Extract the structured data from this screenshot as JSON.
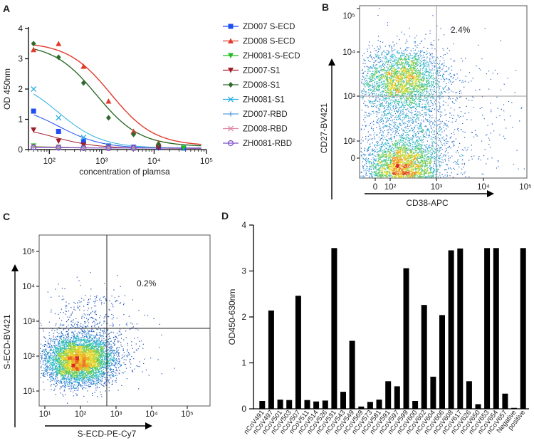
{
  "chart_data": [
    {
      "panel": "A",
      "type": "line",
      "xlabel": "concentration of plamsa",
      "ylabel": "OD 450nm",
      "xscale": "log",
      "xlim": [
        40,
        100000
      ],
      "ylim": [
        0,
        4
      ],
      "x_ticks": [
        "10²",
        "10³",
        "10⁴",
        "10⁵"
      ],
      "y_ticks": [
        "0",
        "1",
        "2",
        "3",
        "4"
      ],
      "series": [
        {
          "name": "ZD007 S-ECD",
          "color": "#1f4ff0",
          "marker": "square",
          "x": [
            50,
            150,
            450,
            1350,
            4050,
            12150,
            36450
          ],
          "y": [
            1.27,
            0.6,
            0.28,
            0.12,
            0.08,
            0.06,
            0.05
          ],
          "fit": [
            1.5,
            0.04,
            150
          ]
        },
        {
          "name": "ZD008 S-ECD",
          "color": "#e23b2e",
          "marker": "triangle-up",
          "x": [
            50,
            150,
            450,
            1350,
            4050,
            12150
          ],
          "y": [
            3.3,
            3.5,
            2.75,
            1.6,
            0.6,
            0.22
          ],
          "fit": [
            3.55,
            0.12,
            1500
          ]
        },
        {
          "name": "ZH0081-S-ECD",
          "color": "#22bb22",
          "marker": "triangle-down",
          "x": [
            50,
            150,
            450,
            1350,
            4050,
            12150,
            36450
          ],
          "y": [
            0.12,
            0.08,
            0.06,
            0.06,
            0.05,
            0.05,
            0.05
          ],
          "fit": [
            0.12,
            0.05,
            120
          ]
        },
        {
          "name": "ZD007-S1",
          "color": "#a01c28",
          "marker": "triangle-down",
          "x": [
            50,
            150,
            450,
            1350,
            4050,
            12150
          ],
          "y": [
            0.65,
            0.28,
            0.15,
            0.08,
            0.06,
            0.05
          ],
          "fit": [
            0.8,
            0.04,
            120
          ]
        },
        {
          "name": "ZD008-S1",
          "color": "#2e6b2a",
          "marker": "diamond",
          "x": [
            50,
            150,
            450,
            1350,
            4050,
            12150
          ],
          "y": [
            3.5,
            3.05,
            2.2,
            1.05,
            0.5,
            0.18
          ],
          "fit": [
            3.5,
            0.1,
            800
          ]
        },
        {
          "name": "ZH0081-S1",
          "color": "#2ab0e0",
          "marker": "x",
          "x": [
            50,
            150,
            450,
            1350,
            4050
          ],
          "y": [
            2.0,
            1.05,
            0.4,
            0.12,
            0.06
          ],
          "fit": [
            2.4,
            0.05,
            150
          ]
        },
        {
          "name": "ZD007-RBD",
          "color": "#5aa0e0",
          "marker": "plus",
          "x": [
            50,
            150,
            450,
            1350,
            4050
          ],
          "y": [
            0.08,
            0.07,
            0.06,
            0.06,
            0.05
          ],
          "fit": [
            0.08,
            0.05,
            200
          ]
        },
        {
          "name": "ZD008-RBD",
          "color": "#e088a8",
          "marker": "x",
          "x": [
            50,
            150,
            450,
            1350,
            4050
          ],
          "y": [
            0.1,
            0.08,
            0.06,
            0.05,
            0.05
          ],
          "fit": [
            0.1,
            0.05,
            200
          ]
        },
        {
          "name": "ZH0081-RBD",
          "color": "#7a4fc8",
          "marker": "circle",
          "x": [
            50,
            150,
            450,
            1350,
            4050
          ],
          "y": [
            0.07,
            0.06,
            0.05,
            0.05,
            0.05
          ],
          "fit": [
            0.07,
            0.05,
            200
          ]
        }
      ]
    },
    {
      "panel": "B",
      "type": "scatter",
      "xlabel": "CD38-APC",
      "ylabel": "CD27-BV421",
      "x_ticks": [
        "0",
        "10²",
        "10³",
        "10⁴",
        "10⁵"
      ],
      "y_ticks": [
        "0",
        "10²",
        "10³",
        "10⁴",
        "10⁵"
      ],
      "gate_percent": "2.4%",
      "populations": [
        {
          "center": [
            2.25,
            3.4
          ],
          "spread": [
            0.45,
            0.35
          ],
          "count": 2600
        },
        {
          "center": [
            2.25,
            1.3
          ],
          "spread": [
            0.4,
            0.35
          ],
          "count": 3400
        },
        {
          "center": [
            2.4,
            2.3
          ],
          "spread": [
            0.55,
            0.8
          ],
          "count": 1800
        },
        {
          "center": [
            3.5,
            2.2
          ],
          "spread": [
            0.7,
            1.0
          ],
          "count": 220
        }
      ]
    },
    {
      "panel": "C",
      "type": "scatter",
      "xlabel": "S-ECD-PE-Cy7",
      "ylabel": "S-ECD-BV421",
      "x_ticks": [
        "10¹",
        "10²",
        "10³",
        "10⁴",
        "10⁵"
      ],
      "y_ticks": [
        "10¹",
        "10²",
        "10³",
        "10⁴",
        "10⁵"
      ],
      "gate_percent": "0.2%",
      "populations": [
        {
          "center": [
            1.95,
            1.9
          ],
          "spread": [
            0.5,
            0.35
          ],
          "count": 5200
        },
        {
          "center": [
            2.3,
            2.8
          ],
          "spread": [
            0.55,
            0.6
          ],
          "count": 450
        },
        {
          "center": [
            3.2,
            2.3
          ],
          "spread": [
            0.6,
            0.8
          ],
          "count": 90
        }
      ]
    },
    {
      "panel": "D",
      "type": "bar",
      "ylabel": "OD450-630nm",
      "ylim": [
        0,
        4
      ],
      "y_ticks": [
        "0",
        "1",
        "2",
        "3",
        "4"
      ],
      "categories": [
        "nCoV491",
        "nCoV497",
        "nCoV501",
        "nCoV503",
        "nCoV507",
        "nCoV511",
        "nCoV514",
        "nCoV526",
        "nCoV531",
        "nCoV543",
        "nCoV549",
        "nCoV569",
        "nCoV573",
        "nCoV581",
        "nCoV591",
        "nCoV597",
        "nCoV599",
        "nCoV600",
        "nCoV602",
        "nCoV604",
        "nCoV606",
        "nCoV608",
        "nCoV617",
        "nCoV626",
        "nCoV650",
        "nCoV653",
        "nCoV654",
        "nCoV657",
        "Negative",
        "positive"
      ],
      "values": [
        0.17,
        2.14,
        0.2,
        0.19,
        2.46,
        0.19,
        0.16,
        0.18,
        3.5,
        0.37,
        1.48,
        0.05,
        0.15,
        0.2,
        0.6,
        0.49,
        3.06,
        0.17,
        2.26,
        0.7,
        2.04,
        3.45,
        3.49,
        0.6,
        0.1,
        3.5,
        3.5,
        0.33,
        0.02,
        3.5
      ]
    }
  ],
  "panel_labels": {
    "a": "A",
    "b": "B",
    "c": "C",
    "d": "D"
  }
}
